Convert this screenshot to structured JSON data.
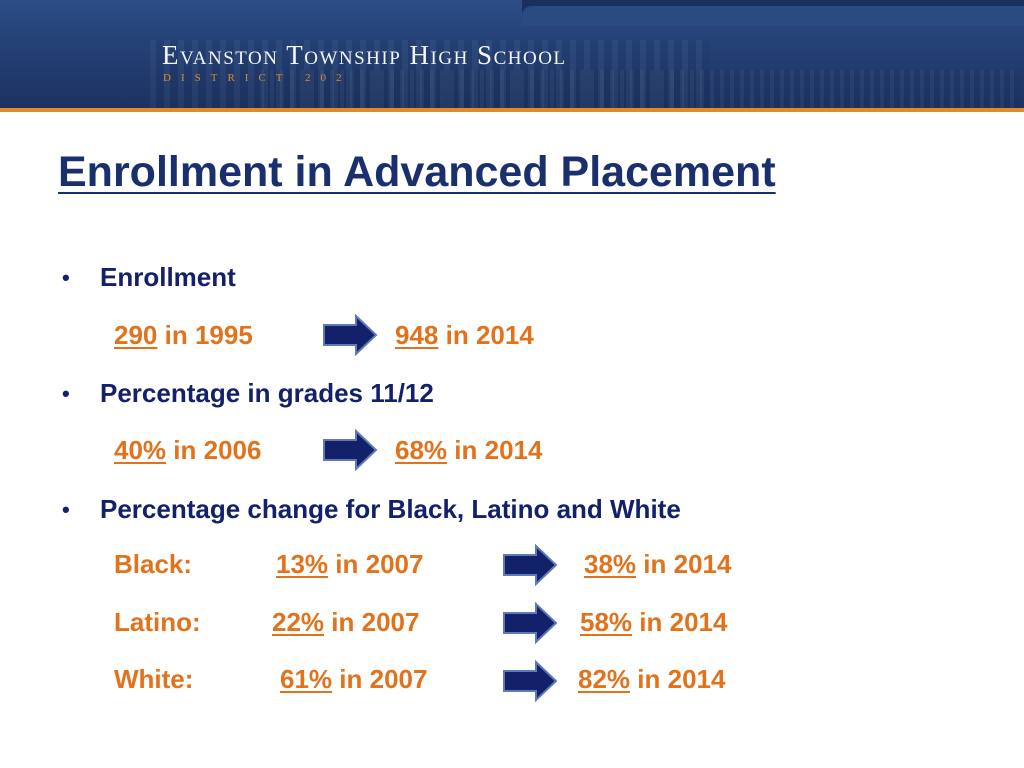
{
  "header": {
    "school_name": "Evanston Township High School",
    "district": "DISTRICT 202"
  },
  "title": "Enrollment in Advanced Placement",
  "sections": [
    {
      "heading": "Enrollment",
      "from_value": "290",
      "from_text": "in 1995",
      "to_value": "948",
      "to_text": "in 2014"
    },
    {
      "heading": "Percentage in grades 11/12",
      "from_value": "40%",
      "from_text": "in 2006",
      "to_value": "68%",
      "to_text": "in 2014"
    },
    {
      "heading": "Percentage change for Black, Latino and White",
      "rows": [
        {
          "label": "Black:",
          "from_value": "13%",
          "from_text": "in 2007",
          "to_value": "38%",
          "to_text": "in 2014"
        },
        {
          "label": "Latino:",
          "from_value": "22%",
          "from_text": "in 2007",
          "to_value": "58%",
          "to_text": "in 2014"
        },
        {
          "label": "White:",
          "from_value": "61%",
          "from_text": "in 2007",
          "to_value": "82%",
          "to_text": "in 2014"
        }
      ]
    }
  ],
  "colors": {
    "navy": "#13206a",
    "orange": "#e2721c",
    "banner": "#233f74"
  },
  "icons": {
    "arrow": "right-arrow-icon",
    "bullet": "bullet-dot"
  }
}
